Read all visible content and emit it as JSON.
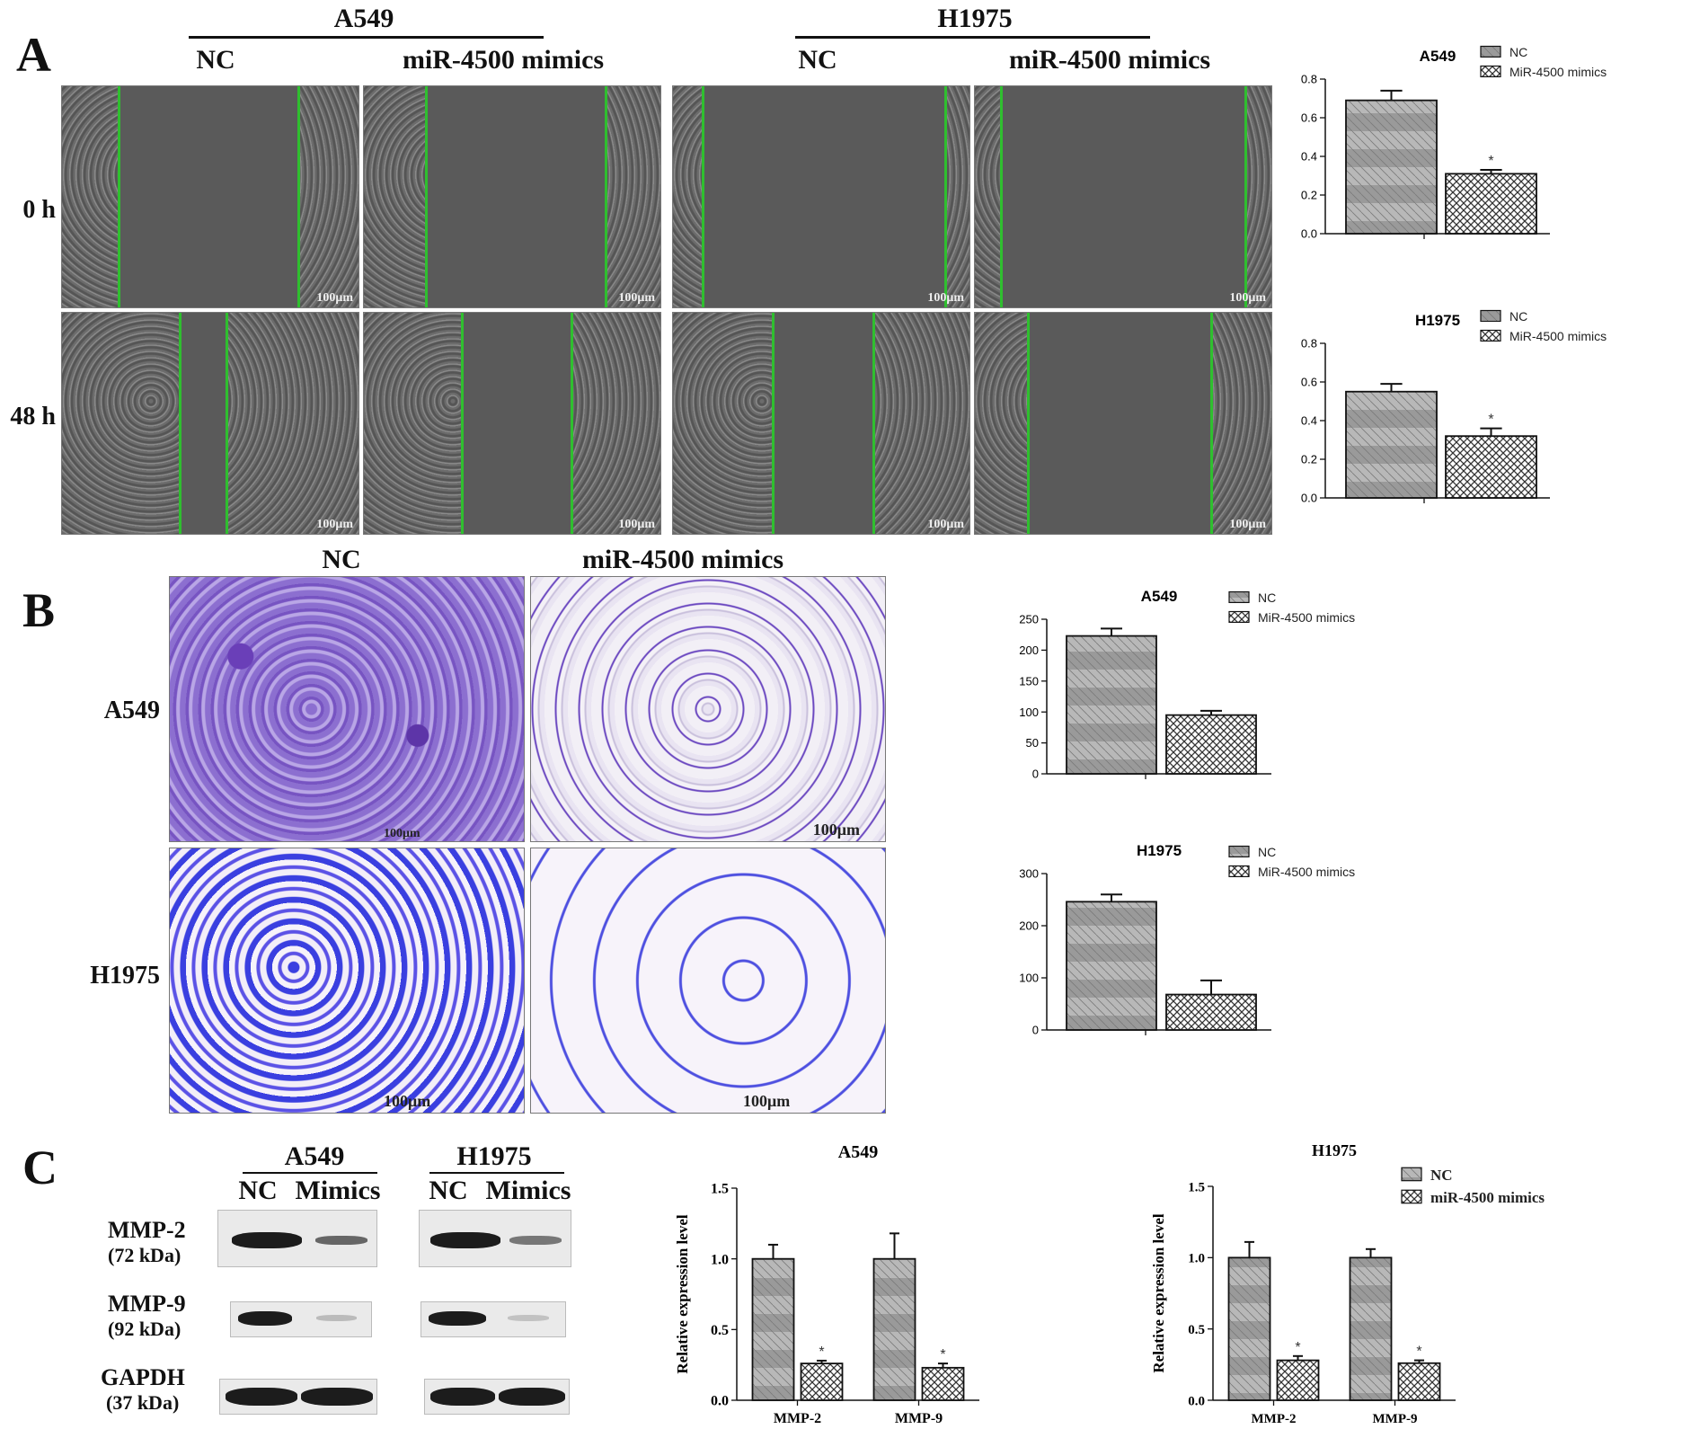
{
  "panels": {
    "A": {
      "letter": "A",
      "cell_groups": [
        "A549",
        "H1975"
      ],
      "conditions": [
        "NC",
        "miR-4500 mimics",
        "NC",
        "miR-4500 mimics"
      ],
      "timepoints": [
        "0 h",
        "48 h"
      ],
      "scale_bar": "100μm"
    },
    "B": {
      "letter": "B",
      "conditions": [
        "NC",
        "miR-4500 mimics"
      ],
      "rows": [
        "A549",
        "H1975"
      ],
      "scale_bar": "100μm"
    },
    "C": {
      "letter": "C",
      "cell_groups": [
        "A549",
        "H1975"
      ],
      "lanes": [
        "NC",
        "Mimics",
        "NC",
        "Mimics"
      ],
      "proteins": [
        {
          "name": "MMP-2",
          "size": "(72 kDa)"
        },
        {
          "name": "MMP-9",
          "size": "(92 kDa)"
        },
        {
          "name": "GAPDH",
          "size": "(37 kDa)"
        }
      ]
    }
  },
  "chart_data": [
    {
      "id": "A-A549",
      "type": "bar",
      "title": "A549",
      "categories": [
        "NC",
        "MiR-4500 mimics"
      ],
      "values": [
        0.69,
        0.31
      ],
      "errors": [
        0.05,
        0.02
      ],
      "significance": [
        "",
        "*"
      ],
      "ylim": [
        0,
        0.8
      ],
      "yticks": [
        "0.0",
        "0.2",
        "0.4",
        "0.6",
        "0.8"
      ],
      "legend": [
        "NC",
        "MiR-4500 mimics"
      ],
      "legend_position": "top-right"
    },
    {
      "id": "A-H1975",
      "type": "bar",
      "title": "H1975",
      "categories": [
        "NC",
        "MiR-4500 mimics"
      ],
      "values": [
        0.55,
        0.32
      ],
      "errors": [
        0.04,
        0.04
      ],
      "significance": [
        "",
        "*"
      ],
      "ylim": [
        0,
        0.8
      ],
      "yticks": [
        "0.0",
        "0.2",
        "0.4",
        "0.6",
        "0.8"
      ],
      "legend": [
        "NC",
        "MiR-4500 mimics"
      ],
      "legend_position": "top-right"
    },
    {
      "id": "B-A549",
      "type": "bar",
      "title": "A549",
      "categories": [
        "NC",
        "MiR-4500 mimics"
      ],
      "values": [
        223,
        95
      ],
      "errors": [
        12,
        7
      ],
      "significance": [
        "",
        ""
      ],
      "ylim": [
        0,
        250
      ],
      "yticks": [
        "0",
        "50",
        "100",
        "150",
        "200",
        "250"
      ],
      "legend": [
        "NC",
        "MiR-4500 mimics"
      ],
      "legend_position": "top-right"
    },
    {
      "id": "B-H1975",
      "type": "bar",
      "title": "H1975",
      "categories": [
        "NC",
        "MiR-4500 mimics"
      ],
      "values": [
        246,
        68
      ],
      "errors": [
        14,
        27
      ],
      "significance": [
        "",
        ""
      ],
      "ylim": [
        0,
        300
      ],
      "yticks": [
        "0",
        "100",
        "200",
        "300"
      ],
      "legend": [
        "NC",
        "MiR-4500 mimics"
      ],
      "legend_position": "top-right"
    },
    {
      "id": "C-A549",
      "type": "bar",
      "title": "A549",
      "categories": [
        "MMP-2",
        "MMP-9"
      ],
      "series": [
        {
          "name": "NC",
          "values": [
            1.0,
            1.0
          ],
          "errors": [
            0.1,
            0.18
          ],
          "significance": [
            "",
            ""
          ]
        },
        {
          "name": "miR-4500 mimics",
          "values": [
            0.26,
            0.23
          ],
          "errors": [
            0.02,
            0.03
          ],
          "significance": [
            "*",
            "*"
          ]
        }
      ],
      "ylabel": "Relative expression level",
      "ylim": [
        0,
        1.5
      ],
      "yticks": [
        "0.0",
        "0.5",
        "1.0",
        "1.5"
      ]
    },
    {
      "id": "C-H1975",
      "type": "bar",
      "title": "H1975",
      "categories": [
        "MMP-2",
        "MMP-9"
      ],
      "series": [
        {
          "name": "NC",
          "values": [
            1.0,
            1.0
          ],
          "errors": [
            0.11,
            0.06
          ],
          "significance": [
            "",
            ""
          ]
        },
        {
          "name": "miR-4500 mimics",
          "values": [
            0.28,
            0.26
          ],
          "errors": [
            0.03,
            0.02
          ],
          "significance": [
            "*",
            "*"
          ]
        }
      ],
      "ylabel": "Relative expression level",
      "ylim": [
        0,
        1.5
      ],
      "yticks": [
        "0.0",
        "0.5",
        "1.0",
        "1.5"
      ],
      "legend": [
        "NC",
        "miR-4500 mimics"
      ],
      "legend_position": "top-right"
    }
  ]
}
